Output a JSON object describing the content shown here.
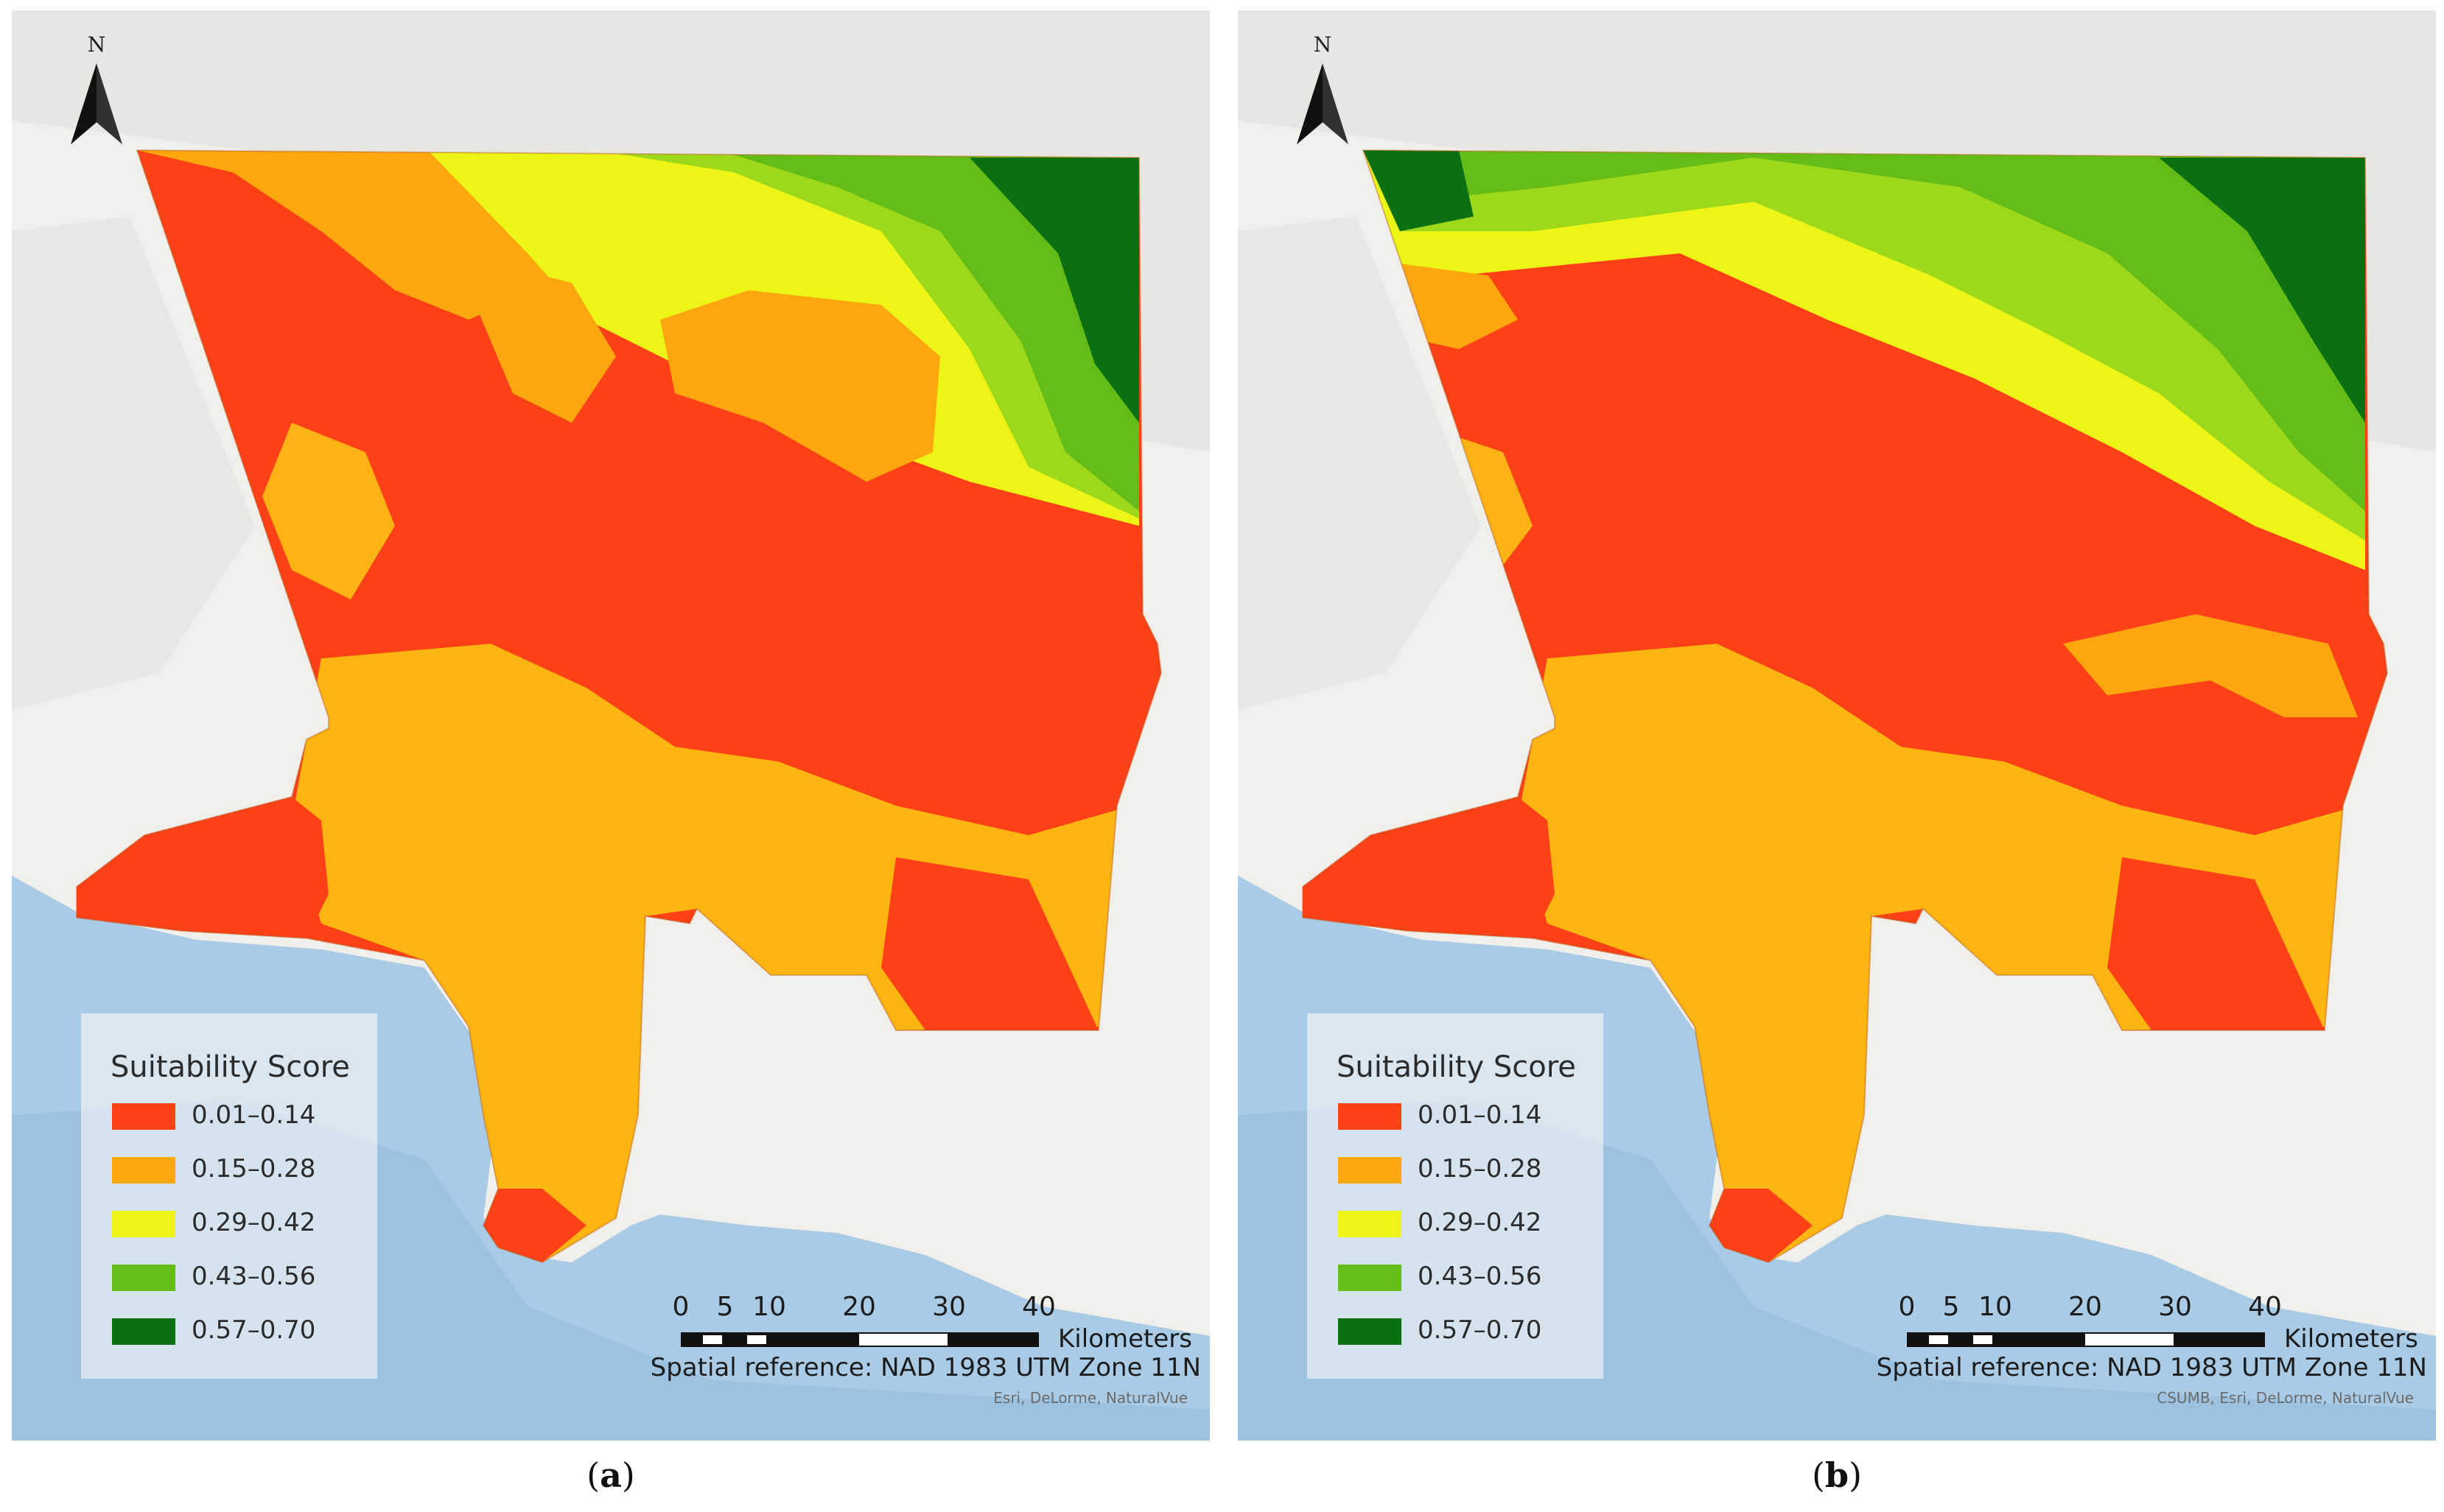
{
  "legend": {
    "title": "Suitability Score",
    "classes": [
      {
        "label": "0.01–0.14",
        "color": "#fc4117"
      },
      {
        "label": "0.15–0.28",
        "color": "#fca70d"
      },
      {
        "label": "0.29–0.42",
        "color": "#ecf515"
      },
      {
        "label": "0.43–0.56",
        "color": "#64bd16"
      },
      {
        "label": "0.57–0.70",
        "color": "#0a7012"
      }
    ]
  },
  "north_label": "N",
  "scale_bar": {
    "ticks": [
      "0",
      "5",
      "10",
      "20",
      "30",
      "40"
    ],
    "units": "Kilometers"
  },
  "spatial_reference": "Spatial reference: NAD 1983 UTM Zone 11N",
  "panels": [
    {
      "letter": "a",
      "credits": "Esri, DeLorme, NaturalVue"
    },
    {
      "letter": "b",
      "credits": "CSUMB, Esri, DeLorme, NaturalVue"
    }
  ],
  "colors": {
    "ocean": "#a9cbe6",
    "land_base": "#f1efea",
    "terrain": "#e2e2dc"
  }
}
